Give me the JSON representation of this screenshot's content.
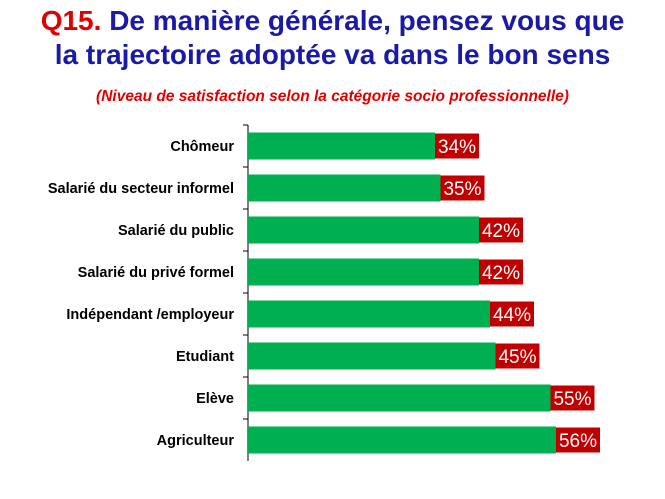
{
  "title": {
    "qnum": "Q15.",
    "line1": "De manière générale, pensez  vous que",
    "line2": "la trajectoire adoptée va dans le bon sens"
  },
  "subtitle": "(Niveau de satisfaction selon  la catégorie socio professionnelle)",
  "chart_data": {
    "type": "bar",
    "orientation": "horizontal",
    "categories": [
      "Chômeur",
      "Salarié du secteur informel",
      "Salarié du public",
      "Salarié du privé formel",
      "Indépendant /employeur",
      "Etudiant",
      "Elève",
      "Agriculteur"
    ],
    "values": [
      34,
      35,
      42,
      42,
      44,
      45,
      55,
      56
    ],
    "labels": [
      "34%",
      "35%",
      "42%",
      "42%",
      "44%",
      "45%",
      "55%",
      "56%"
    ],
    "xlim": [
      0,
      100
    ],
    "bar_color": "#00b050",
    "label_bg_color": "#c00000",
    "label_text_color": "#ffffff",
    "grid": false,
    "legend": "none"
  }
}
